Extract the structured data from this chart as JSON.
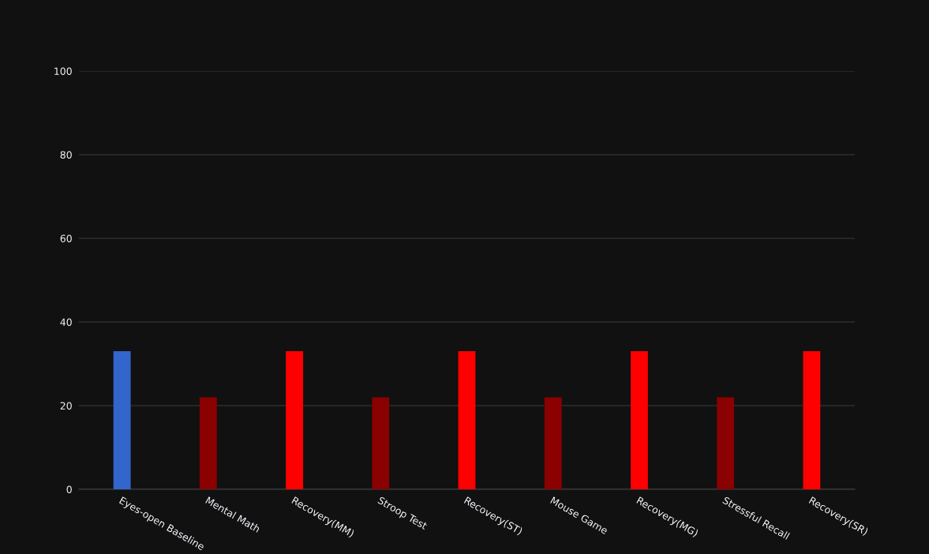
{
  "chart_data": {
    "type": "bar",
    "categories": [
      "Eyes-open Baseline",
      "Mental Math",
      "Recovery(MM)",
      "Stroop Test",
      "Recovery(ST)",
      "Mouse Game",
      "Recovery(MG)",
      "Stressful Recall",
      "Recovery(SR)"
    ],
    "values": [
      33,
      22,
      33,
      22,
      33,
      22,
      33,
      22,
      33
    ],
    "colors": [
      "#3366cc",
      "#8b0000",
      "#ff0000",
      "#8b0000",
      "#ff0000",
      "#8b0000",
      "#ff0000",
      "#8b0000",
      "#ff0000"
    ],
    "ylim": [
      0,
      100
    ],
    "yticks": [
      0,
      20,
      40,
      60,
      80,
      100
    ],
    "grid": "y",
    "legend": false
  }
}
